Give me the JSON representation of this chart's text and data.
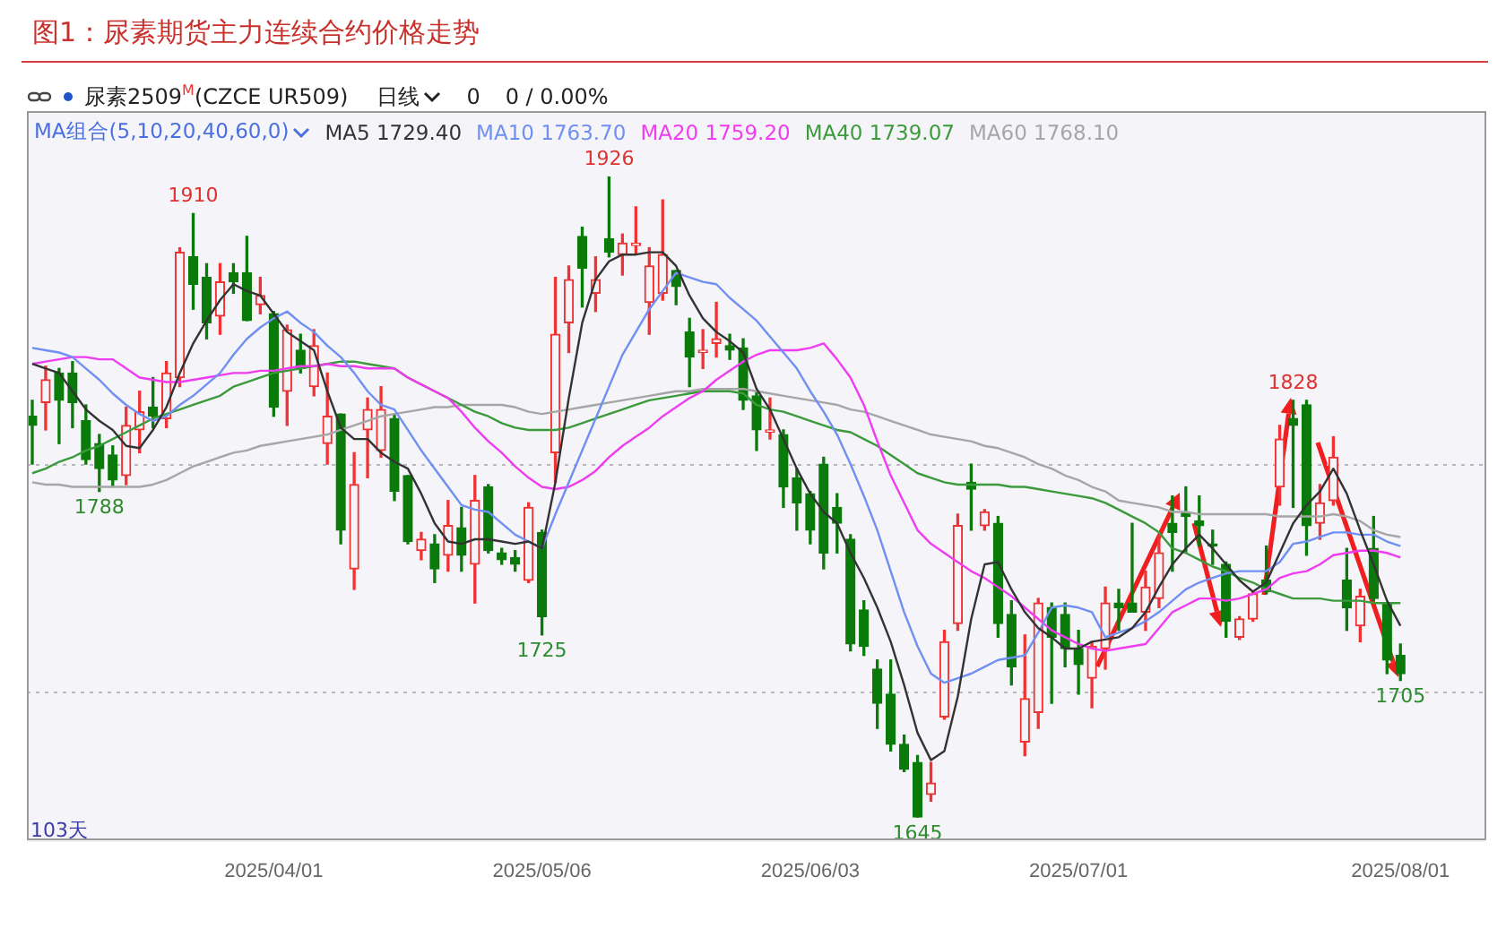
{
  "chart_data": {
    "type": "candlestick",
    "title": "图1：尿素期货主力连续合约价格走势",
    "categories": [
      null,
      null,
      null,
      null,
      null,
      null,
      null,
      null,
      null,
      null,
      null,
      null,
      null,
      null,
      null,
      null,
      null,
      null,
      "2025/04/01",
      null,
      null,
      null,
      null,
      null,
      null,
      null,
      null,
      null,
      null,
      null,
      null,
      null,
      null,
      null,
      null,
      null,
      null,
      null,
      "2025/05/06",
      null,
      null,
      null,
      null,
      null,
      null,
      null,
      null,
      null,
      null,
      null,
      null,
      null,
      null,
      null,
      null,
      null,
      null,
      null,
      "2025/06/03",
      null,
      null,
      null,
      null,
      null,
      null,
      null,
      null,
      null,
      null,
      null,
      null,
      null,
      null,
      null,
      null,
      null,
      null,
      null,
      "2025/07/01",
      null,
      null,
      null,
      null,
      null,
      null,
      null,
      null,
      null,
      null,
      null,
      null,
      null,
      null,
      null,
      null,
      null,
      null,
      null,
      null,
      null,
      null,
      null,
      "2025/08/01"
    ],
    "ohlc": [
      [
        1821,
        1828,
        1800,
        1817
      ],
      [
        1827,
        1843,
        1815,
        1837
      ],
      [
        1840,
        1842,
        1809,
        1828
      ],
      [
        1840,
        1845,
        1816,
        1827
      ],
      [
        1819,
        1826,
        1800,
        1802
      ],
      [
        1809,
        1813,
        1788,
        1798
      ],
      [
        1804,
        1808,
        1790,
        1793
      ],
      [
        1795,
        1825,
        1791,
        1817
      ],
      [
        1815,
        1832,
        1805,
        1823
      ],
      [
        1825,
        1838,
        1816,
        1821
      ],
      [
        1820,
        1845,
        1816,
        1840
      ],
      [
        1838,
        1895,
        1834,
        1893
      ],
      [
        1891,
        1910,
        1868,
        1879
      ],
      [
        1882,
        1888,
        1855,
        1862
      ],
      [
        1865,
        1888,
        1857,
        1880
      ],
      [
        1884,
        1888,
        1875,
        1880
      ],
      [
        1884,
        1900,
        1863,
        1863
      ],
      [
        1870,
        1882,
        1866,
        1874
      ],
      [
        1866,
        1867,
        1821,
        1825
      ],
      [
        1832,
        1861,
        1817,
        1859
      ],
      [
        1850,
        1857,
        1840,
        1842
      ],
      [
        1834,
        1859,
        1830,
        1852
      ],
      [
        1809,
        1840,
        1800,
        1821
      ],
      [
        1822,
        1822,
        1765,
        1771
      ],
      [
        1754,
        1805,
        1745,
        1791
      ],
      [
        1815,
        1829,
        1794,
        1824
      ],
      [
        1806,
        1834,
        1803,
        1824
      ],
      [
        1820,
        1822,
        1784,
        1788
      ],
      [
        1795,
        1795,
        1765,
        1766
      ],
      [
        1762,
        1770,
        1758,
        1767
      ],
      [
        1765,
        1769,
        1748,
        1754
      ],
      [
        1760,
        1784,
        1753,
        1773
      ],
      [
        1772,
        1781,
        1753,
        1760
      ],
      [
        1756,
        1795,
        1739,
        1784
      ],
      [
        1790,
        1791,
        1761,
        1762
      ],
      [
        1761,
        1763,
        1756,
        1758
      ],
      [
        1759,
        1762,
        1753,
        1756
      ],
      [
        1749,
        1783,
        1748,
        1781
      ],
      [
        1770,
        1771,
        1725,
        1733
      ],
      [
        1805,
        1882,
        1792,
        1857
      ],
      [
        1862,
        1887,
        1849,
        1881
      ],
      [
        1900,
        1904,
        1869,
        1886
      ],
      [
        1875,
        1891,
        1867,
        1881
      ],
      [
        1899,
        1926,
        1891,
        1893
      ],
      [
        1892,
        1901,
        1883,
        1897
      ],
      [
        1896,
        1913,
        1892,
        1897
      ],
      [
        1871,
        1895,
        1857,
        1887
      ],
      [
        1875,
        1916,
        1872,
        1892
      ],
      [
        1885,
        1885,
        1870,
        1878
      ],
      [
        1858,
        1864,
        1834,
        1847
      ],
      [
        1849,
        1859,
        1842,
        1850
      ],
      [
        1853,
        1871,
        1847,
        1855
      ],
      [
        1852,
        1857,
        1846,
        1850
      ],
      [
        1851,
        1855,
        1824,
        1828
      ],
      [
        1830,
        1832,
        1806,
        1815
      ],
      [
        1814,
        1829,
        1811,
        1815
      ],
      [
        1813,
        1815,
        1781,
        1790
      ],
      [
        1794,
        1798,
        1771,
        1783
      ],
      [
        1787,
        1788,
        1765,
        1771
      ],
      [
        1800,
        1803,
        1754,
        1761
      ],
      [
        1781,
        1787,
        1761,
        1774
      ],
      [
        1767,
        1769,
        1718,
        1721
      ],
      [
        1736,
        1740,
        1716,
        1720
      ],
      [
        1710,
        1714,
        1684,
        1695
      ],
      [
        1699,
        1714,
        1674,
        1677
      ],
      [
        1677,
        1681,
        1665,
        1666
      ],
      [
        1669,
        1672,
        1645,
        1645
      ],
      [
        1655,
        1669,
        1652,
        1660
      ],
      [
        1689,
        1727,
        1688,
        1722
      ],
      [
        1730,
        1778,
        1727,
        1773
      ],
      [
        1792,
        1800,
        1771,
        1789
      ],
      [
        1773,
        1780,
        1771,
        1779
      ],
      [
        1774,
        1777,
        1724,
        1730
      ],
      [
        1734,
        1740,
        1703,
        1711
      ],
      [
        1678,
        1725,
        1672,
        1697
      ],
      [
        1691,
        1741,
        1684,
        1739
      ],
      [
        1737,
        1739,
        1695,
        1724
      ],
      [
        1734,
        1739,
        1711,
        1719
      ],
      [
        1719,
        1727,
        1699,
        1712
      ],
      [
        1706,
        1722,
        1693,
        1720
      ],
      [
        1719,
        1746,
        1710,
        1739
      ],
      [
        1739,
        1745,
        1727,
        1737
      ],
      [
        1739,
        1774,
        1735,
        1735
      ],
      [
        1735,
        1753,
        1727,
        1746
      ],
      [
        1741,
        1769,
        1737,
        1761
      ],
      [
        1774,
        1786,
        1753,
        1770
      ],
      [
        1779,
        1790,
        1761,
        1777
      ],
      [
        1775,
        1786,
        1764,
        1773
      ],
      [
        1765,
        1771,
        1756,
        1764
      ],
      [
        1756,
        1757,
        1724,
        1731
      ],
      [
        1724,
        1733,
        1723,
        1732
      ],
      [
        1732,
        1744,
        1731,
        1743
      ],
      [
        1749,
        1764,
        1743,
        1744
      ],
      [
        1790,
        1817,
        1782,
        1811
      ],
      [
        1820,
        1828,
        1781,
        1817
      ],
      [
        1826,
        1828,
        1760,
        1773
      ],
      [
        1774,
        1791,
        1767,
        1783
      ],
      [
        1784,
        1812,
        1782,
        1803
      ],
      [
        1749,
        1763,
        1727,
        1737
      ],
      [
        1729,
        1745,
        1722,
        1742
      ],
      [
        1763,
        1777,
        1740,
        1741
      ],
      [
        1739,
        1739,
        1708,
        1714
      ],
      [
        1716,
        1721,
        1705,
        1708
      ]
    ],
    "series": [
      {
        "type": "line",
        "name": "MA5 1729.40",
        "color": "#333333",
        "values": [
          1844,
          1842,
          1840,
          1832,
          1824,
          1819,
          1815,
          1808,
          1807,
          1815,
          1825,
          1840,
          1853,
          1863,
          1872,
          1879,
          1876,
          1874,
          1866,
          1858,
          1854,
          1850,
          1832,
          1816,
          1811,
          1811,
          1805,
          1801,
          1798,
          1787,
          1774,
          1766,
          1765,
          1767,
          1767,
          1766,
          1765,
          1766,
          1763,
          1792,
          1829,
          1862,
          1881,
          1889,
          1892,
          1892,
          1893,
          1893,
          1887,
          1874,
          1864,
          1858,
          1854,
          1849,
          1833,
          1824,
          1811,
          1798,
          1787,
          1779,
          1774,
          1761,
          1750,
          1737,
          1722,
          1703,
          1682,
          1670,
          1674,
          1698,
          1732,
          1756,
          1757,
          1745,
          1735,
          1728,
          1724,
          1719,
          1719,
          1722,
          1723,
          1724,
          1728,
          1735,
          1746,
          1756,
          1763,
          1769,
          1763,
          1756,
          1749,
          1744,
          1748,
          1761,
          1774,
          1782,
          1788,
          1798,
          1787,
          1771,
          1756,
          1740,
          1729
        ]
      },
      {
        "type": "line",
        "name": "MA10 1763.70",
        "color": "#6f8ff2",
        "values": [
          1851,
          1850,
          1849,
          1847,
          1842,
          1837,
          1831,
          1826,
          1822,
          1819,
          1821,
          1826,
          1830,
          1835,
          1840,
          1848,
          1855,
          1860,
          1864,
          1867,
          1862,
          1858,
          1852,
          1847,
          1840,
          1832,
          1826,
          1824,
          1815,
          1806,
          1798,
          1790,
          1782,
          1780,
          1779,
          1774,
          1769,
          1766,
          1763,
          1778,
          1792,
          1806,
          1820,
          1834,
          1848,
          1858,
          1868,
          1876,
          1884,
          1882,
          1880,
          1879,
          1873,
          1868,
          1863,
          1856,
          1849,
          1842,
          1832,
          1823,
          1813,
          1800,
          1786,
          1771,
          1753,
          1735,
          1720,
          1708,
          1704,
          1706,
          1708,
          1711,
          1714,
          1715,
          1716,
          1726,
          1737,
          1738,
          1737,
          1735,
          1724,
          1726,
          1728,
          1731,
          1735,
          1740,
          1745,
          1748,
          1750,
          1752,
          1753,
          1753,
          1753,
          1757,
          1765,
          1766,
          1768,
          1770,
          1770,
          1769,
          1769,
          1766,
          1764
        ]
      },
      {
        "type": "line",
        "name": "MA20 1759.20",
        "color": "#f03cf0",
        "values": [
          1844,
          1845,
          1846,
          1847,
          1847,
          1846,
          1846,
          1842,
          1838,
          1837,
          1836,
          1836,
          1837,
          1838,
          1839,
          1840,
          1840,
          1841,
          1841,
          1842,
          1843,
          1843,
          1844,
          1843,
          1843,
          1842,
          1842,
          1842,
          1838,
          1835,
          1832,
          1829,
          1823,
          1816,
          1810,
          1805,
          1799,
          1794,
          1790,
          1789,
          1790,
          1793,
          1797,
          1803,
          1808,
          1812,
          1816,
          1821,
          1825,
          1829,
          1832,
          1837,
          1841,
          1845,
          1848,
          1850,
          1850,
          1850,
          1851,
          1853,
          1846,
          1838,
          1826,
          1810,
          1795,
          1783,
          1771,
          1765,
          1761,
          1757,
          1753,
          1750,
          1746,
          1742,
          1737,
          1732,
          1727,
          1724,
          1721,
          1719,
          1718,
          1719,
          1720,
          1721,
          1728,
          1735,
          1738,
          1741,
          1741,
          1740,
          1741,
          1743,
          1745,
          1750,
          1752,
          1753,
          1756,
          1760,
          1761,
          1762,
          1762,
          1761,
          1759
        ]
      },
      {
        "type": "line",
        "name": "MA40 1739.07",
        "color": "#3c9a3c",
        "values": [
          1796,
          1798,
          1801,
          1803,
          1806,
          1808,
          1811,
          1814,
          1817,
          1820,
          1822,
          1824,
          1826,
          1828,
          1830,
          1834,
          1836,
          1838,
          1840,
          1841,
          1842,
          1843,
          1844,
          1845,
          1845,
          1844,
          1843,
          1842,
          1838,
          1835,
          1832,
          1829,
          1826,
          1823,
          1821,
          1818,
          1816,
          1815,
          1815,
          1815,
          1816,
          1818,
          1820,
          1822,
          1824,
          1826,
          1828,
          1829,
          1830,
          1831,
          1832,
          1832,
          1832,
          1831,
          1826,
          1824,
          1823,
          1821,
          1819,
          1817,
          1815,
          1814,
          1811,
          1808,
          1804,
          1800,
          1796,
          1794,
          1792,
          1791,
          1791,
          1791,
          1791,
          1790,
          1790,
          1789,
          1788,
          1787,
          1786,
          1785,
          1783,
          1780,
          1777,
          1774,
          1770,
          1763,
          1761,
          1758,
          1755,
          1753,
          1750,
          1748,
          1745,
          1743,
          1741,
          1741,
          1741,
          1740,
          1740,
          1740,
          1739,
          1739,
          1739
        ]
      },
      {
        "type": "line",
        "name": "MA60 1768.10",
        "color": "#a6a6a6",
        "values": [
          1792,
          1791,
          1791,
          1790,
          1790,
          1790,
          1790,
          1790,
          1790,
          1791,
          1793,
          1796,
          1799,
          1801,
          1803,
          1805,
          1806,
          1808,
          1809,
          1810,
          1811,
          1812,
          1813,
          1815,
          1817,
          1819,
          1821,
          1822,
          1823,
          1824,
          1825,
          1825,
          1826,
          1826,
          1826,
          1826,
          1825,
          1823,
          1822,
          1823,
          1824,
          1825,
          1826,
          1827,
          1828,
          1829,
          1830,
          1831,
          1832,
          1832,
          1833,
          1833,
          1833,
          1833,
          1832,
          1831,
          1830,
          1829,
          1828,
          1827,
          1826,
          1824,
          1823,
          1821,
          1819,
          1817,
          1815,
          1813,
          1812,
          1811,
          1810,
          1808,
          1807,
          1805,
          1803,
          1800,
          1798,
          1795,
          1793,
          1790,
          1788,
          1784,
          1783,
          1782,
          1781,
          1779,
          1779,
          1778,
          1778,
          1778,
          1778,
          1778,
          1778,
          1777,
          1777,
          1777,
          1777,
          1778,
          1777,
          1775,
          1771,
          1769,
          1768
        ]
      }
    ],
    "ylim": [
      1635,
      1955
    ],
    "yticks": [
      {
        "value": 1700,
        "label": null
      },
      {
        "value": 1800,
        "label": null
      }
    ],
    "grid": "y",
    "tick_labels": "x",
    "legend": "top left",
    "annotations": [
      "尿素2509$^{M}$(CZCE UR509)",
      "日线",
      "0",
      "0 / 0.00%",
      "MA组合(5,10,20,40,60,0)",
      "103天",
      {
        "text": "1910",
        "y": 1910
      },
      {
        "text": "1788",
        "y": 1788
      },
      {
        "text": "1926",
        "y": 1926
      },
      {
        "text": "1725",
        "y": 1725
      },
      {
        "text": "1645",
        "y": 1645
      },
      {
        "text": "1828",
        "y": 1828
      },
      {
        "text": "1705",
        "y": 1705
      }
    ]
  }
}
